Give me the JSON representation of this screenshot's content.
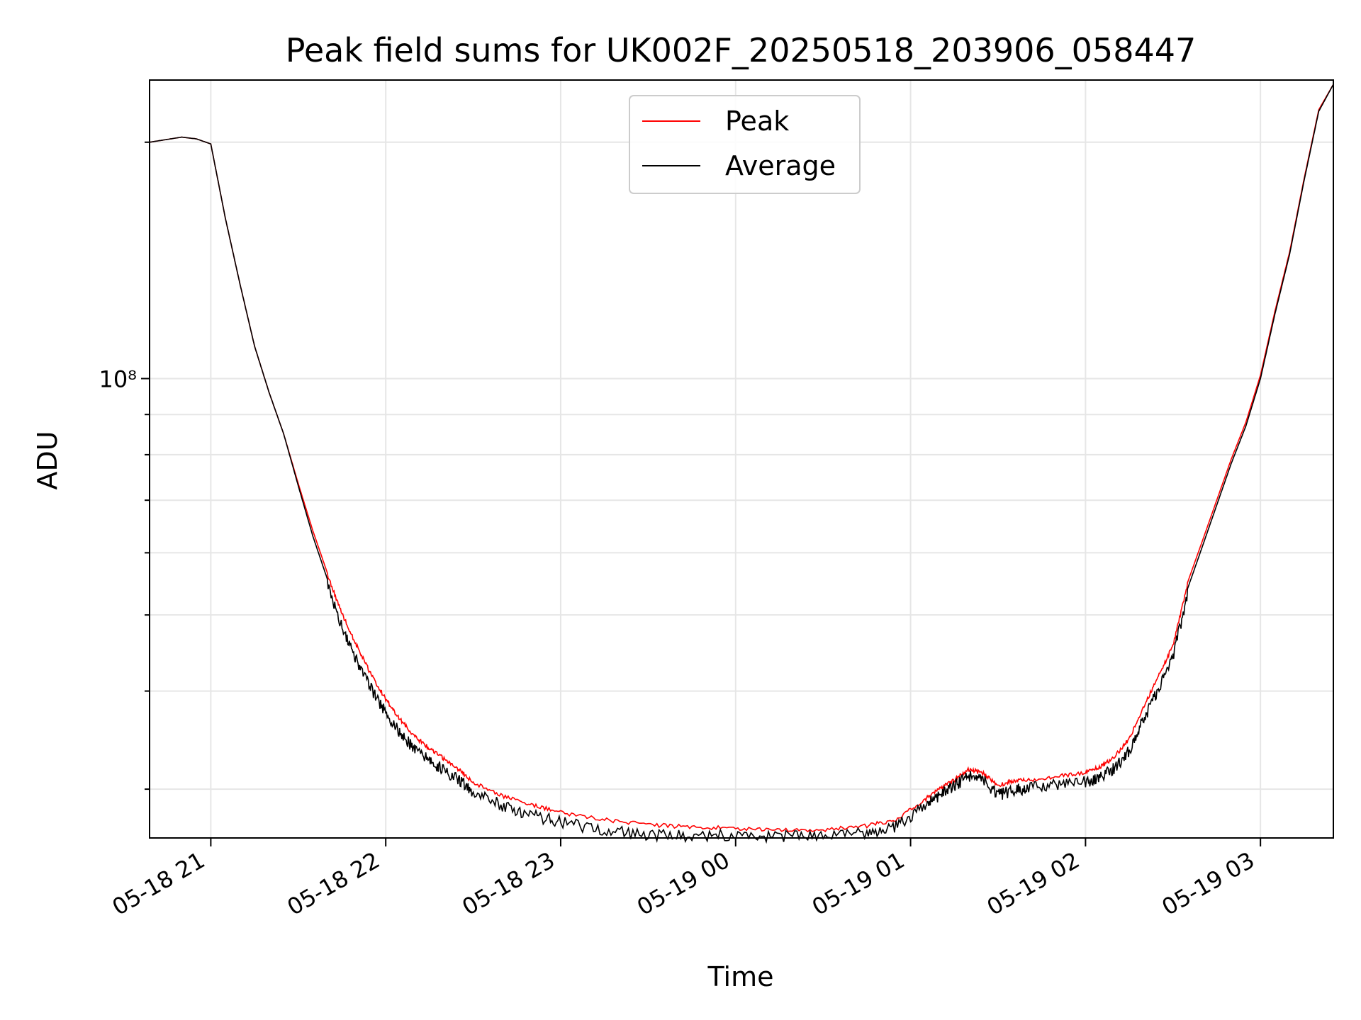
{
  "chart_data": {
    "type": "line",
    "title": "Peak field sums for UK002F_20250518_203906_058447",
    "xlabel": "Time",
    "ylabel": "ADU",
    "y_scale": "log",
    "grid": true,
    "legend_position": "top-center",
    "x_tick_labels": [
      "05-18 21",
      "05-18 22",
      "05-18 23",
      "05-19 00",
      "05-19 01",
      "05-19 02",
      "05-19 03"
    ],
    "y_tick_labels": [
      {
        "value": 100000000,
        "text": "10⁸"
      }
    ],
    "x_range": [
      "2025-05-18 20:39",
      "2025-05-19 03:25"
    ],
    "y_range": [
      26000000,
      240000000
    ],
    "series": [
      {
        "name": "Peak",
        "color": "#ff0000",
        "x": [
          "2025-05-18 20:39",
          "2025-05-18 20:50",
          "2025-05-18 20:55",
          "2025-05-18 21:00",
          "2025-05-18 21:05",
          "2025-05-18 21:10",
          "2025-05-18 21:15",
          "2025-05-18 21:20",
          "2025-05-18 21:25",
          "2025-05-18 21:30",
          "2025-05-18 21:35",
          "2025-05-18 21:40",
          "2025-05-18 21:45",
          "2025-05-18 21:50",
          "2025-05-18 21:55",
          "2025-05-18 22:00",
          "2025-05-18 22:05",
          "2025-05-18 22:10",
          "2025-05-18 22:15",
          "2025-05-18 22:20",
          "2025-05-18 22:25",
          "2025-05-18 22:30",
          "2025-05-18 22:40",
          "2025-05-18 22:50",
          "2025-05-18 23:00",
          "2025-05-18 23:15",
          "2025-05-18 23:30",
          "2025-05-18 23:45",
          "2025-05-19 00:00",
          "2025-05-19 00:15",
          "2025-05-19 00:30",
          "2025-05-19 00:45",
          "2025-05-19 00:55",
          "2025-05-19 01:05",
          "2025-05-19 01:10",
          "2025-05-19 01:15",
          "2025-05-19 01:20",
          "2025-05-19 01:25",
          "2025-05-19 01:30",
          "2025-05-19 01:35",
          "2025-05-19 01:40",
          "2025-05-19 01:50",
          "2025-05-19 02:00",
          "2025-05-19 02:05",
          "2025-05-19 02:10",
          "2025-05-19 02:15",
          "2025-05-19 02:20",
          "2025-05-19 02:25",
          "2025-05-19 02:30",
          "2025-05-19 02:35",
          "2025-05-19 02:40",
          "2025-05-19 02:45",
          "2025-05-19 02:50",
          "2025-05-19 02:55",
          "2025-05-19 03:00",
          "2025-05-19 03:05",
          "2025-05-19 03:10",
          "2025-05-19 03:15",
          "2025-05-19 03:20",
          "2025-05-19 03:25"
        ],
        "y": [
          200000000,
          203000000,
          202000000,
          199000000,
          160000000,
          132000000,
          110000000,
          96000000,
          85000000,
          73500000,
          64000000,
          56500000,
          50500000,
          46000000,
          42200000,
          39300000,
          37000000,
          35200000,
          34000000,
          33000000,
          32000000,
          30800000,
          29600000,
          28800000,
          28200000,
          27600000,
          27200000,
          27000000,
          26900000,
          26800000,
          26800000,
          27100000,
          27600000,
          29300000,
          30200000,
          31000000,
          32000000,
          31600000,
          30500000,
          30900000,
          31000000,
          31300000,
          31700000,
          32200000,
          33200000,
          35000000,
          38500000,
          42000000,
          46000000,
          55000000,
          62000000,
          70000000,
          79000000,
          88000000,
          101000000,
          122000000,
          145000000,
          180000000,
          220000000,
          237000000
        ]
      },
      {
        "name": "Average",
        "color": "#000000",
        "x": [
          "2025-05-18 20:39",
          "2025-05-18 20:50",
          "2025-05-18 20:55",
          "2025-05-18 21:00",
          "2025-05-18 21:05",
          "2025-05-18 21:10",
          "2025-05-18 21:15",
          "2025-05-18 21:20",
          "2025-05-18 21:25",
          "2025-05-18 21:30",
          "2025-05-18 21:35",
          "2025-05-18 21:40",
          "2025-05-18 21:45",
          "2025-05-18 21:50",
          "2025-05-18 21:55",
          "2025-05-18 22:00",
          "2025-05-18 22:05",
          "2025-05-18 22:10",
          "2025-05-18 22:15",
          "2025-05-18 22:20",
          "2025-05-18 22:25",
          "2025-05-18 22:30",
          "2025-05-18 22:40",
          "2025-05-18 22:50",
          "2025-05-18 23:00",
          "2025-05-18 23:15",
          "2025-05-18 23:30",
          "2025-05-18 23:45",
          "2025-05-19 00:00",
          "2025-05-19 00:15",
          "2025-05-19 00:30",
          "2025-05-19 00:45",
          "2025-05-19 00:55",
          "2025-05-19 01:05",
          "2025-05-19 01:10",
          "2025-05-19 01:15",
          "2025-05-19 01:20",
          "2025-05-19 01:25",
          "2025-05-19 01:30",
          "2025-05-19 01:35",
          "2025-05-19 01:40",
          "2025-05-19 01:50",
          "2025-05-19 02:00",
          "2025-05-19 02:05",
          "2025-05-19 02:10",
          "2025-05-19 02:15",
          "2025-05-19 02:20",
          "2025-05-19 02:25",
          "2025-05-19 02:30",
          "2025-05-19 02:35",
          "2025-05-19 02:40",
          "2025-05-19 02:45",
          "2025-05-19 02:50",
          "2025-05-19 02:55",
          "2025-05-19 03:00",
          "2025-05-19 03:05",
          "2025-05-19 03:10",
          "2025-05-19 03:15",
          "2025-05-19 03:20",
          "2025-05-19 03:25"
        ],
        "y": [
          200000000,
          203000000,
          202000000,
          199000000,
          160000000,
          132000000,
          110000000,
          96000000,
          85000000,
          73000000,
          63000000,
          55500000,
          49000000,
          44500000,
          41000000,
          38200000,
          36000000,
          34300000,
          33200000,
          32300000,
          31400000,
          30200000,
          29100000,
          28300000,
          27700000,
          27100000,
          26700000,
          26600000,
          26700000,
          26600000,
          26600000,
          26900000,
          27400000,
          29100000,
          30000000,
          30800000,
          31800000,
          31300000,
          30000000,
          30400000,
          30600000,
          30900000,
          31200000,
          31600000,
          32500000,
          34200000,
          37500000,
          41000000,
          45000000,
          54000000,
          61000000,
          69000000,
          78000000,
          87000000,
          100000000,
          121000000,
          144000000,
          179000000,
          219000000,
          237000000
        ]
      }
    ]
  }
}
